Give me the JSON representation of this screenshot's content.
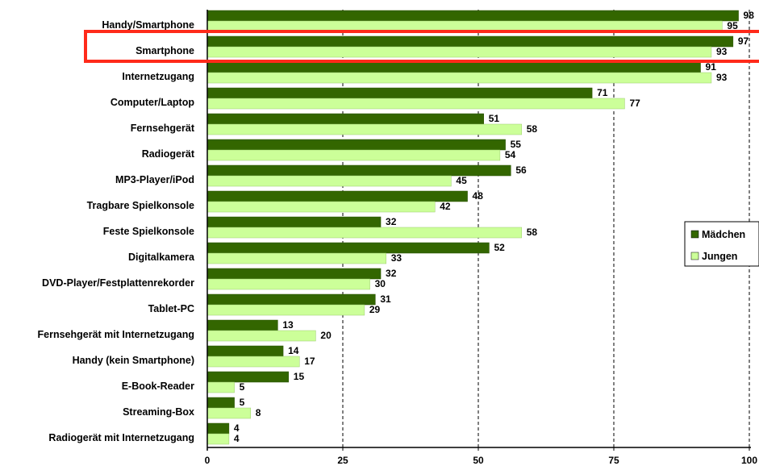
{
  "chart_data": {
    "type": "bar",
    "orientation": "horizontal",
    "categories": [
      "Handy/Smartphone",
      "Smartphone",
      "Internetzugang",
      "Computer/Laptop",
      "Fernsehgerät",
      "Radiogerät",
      "MP3-Player/iPod",
      "Tragbare Spielkonsole",
      "Feste Spielkonsole",
      "Digitalkamera",
      "DVD-Player/Festplattenrekorder",
      "Tablet-PC",
      "Fernsehgerät mit Internetzugang",
      "Handy (kein Smartphone)",
      "E-Book-Reader",
      "Streaming-Box",
      "Radiogerät mit Internetzugang"
    ],
    "series": [
      {
        "name": "Mädchen",
        "color": "#336600",
        "values": [
          98,
          97,
          91,
          71,
          51,
          55,
          56,
          48,
          32,
          52,
          32,
          31,
          13,
          14,
          15,
          5,
          4
        ]
      },
      {
        "name": "Jungen",
        "color": "#ccff99",
        "values": [
          95,
          93,
          93,
          77,
          58,
          54,
          45,
          42,
          58,
          33,
          30,
          29,
          20,
          17,
          5,
          8,
          4
        ]
      }
    ],
    "xlim": [
      0,
      100
    ],
    "xticks": [
      0,
      25,
      50,
      75,
      100
    ],
    "grid": "vertical",
    "legend": "right",
    "highlighted_category": "Smartphone",
    "highlight_color": "#ff2a1a"
  }
}
